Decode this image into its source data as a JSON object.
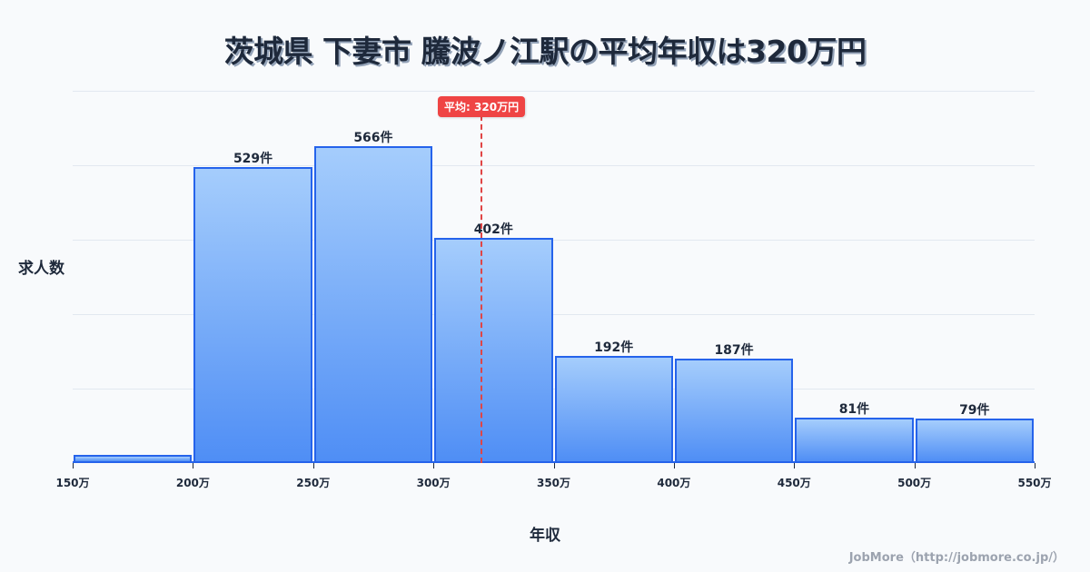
{
  "title": "茨城県 下妻市 騰波ノ江駅の平均年収は320万円",
  "axis": {
    "ylabel": "求人数",
    "xlabel": "年収"
  },
  "mean": {
    "label": "平均: 320万円",
    "value": 320,
    "color": "#ef4444"
  },
  "credit": "JobMore（http://jobmore.co.jp/）",
  "ticks": [
    "150万",
    "200万",
    "250万",
    "300万",
    "350万",
    "400万",
    "450万",
    "500万",
    "550万"
  ],
  "bars": [
    {
      "range": "150-200万",
      "value": 15,
      "label": ""
    },
    {
      "range": "200-250万",
      "value": 529,
      "label": "529件"
    },
    {
      "range": "250-300万",
      "value": 566,
      "label": "566件"
    },
    {
      "range": "300-350万",
      "value": 402,
      "label": "402件"
    },
    {
      "range": "350-400万",
      "value": 192,
      "label": "192件"
    },
    {
      "range": "400-450万",
      "value": 187,
      "label": "187件"
    },
    {
      "range": "450-500万",
      "value": 81,
      "label": "81件"
    },
    {
      "range": "500-550万",
      "value": 79,
      "label": "79件"
    }
  ],
  "colors": {
    "bar_border": "#2563eb",
    "bar_top": "#a5cdfc",
    "bar_bottom": "#4f8ef5",
    "mean_line": "#e04545",
    "text": "#1e293b"
  },
  "chart_data": {
    "type": "bar",
    "title": "茨城県 下妻市 騰波ノ江駅の平均年収は320万円",
    "xlabel": "年収",
    "ylabel": "求人数",
    "categories": [
      "150-200万",
      "200-250万",
      "250-300万",
      "300-350万",
      "350-400万",
      "400-450万",
      "450-500万",
      "500-550万"
    ],
    "values": [
      15,
      529,
      566,
      402,
      192,
      187,
      81,
      79
    ],
    "x_ticks": [
      "150万",
      "200万",
      "250万",
      "300万",
      "350万",
      "400万",
      "450万",
      "500万",
      "550万"
    ],
    "xlim": [
      150,
      550
    ],
    "ylim": [
      0,
      665
    ],
    "grid": true,
    "annotations": [
      {
        "type": "vline",
        "x": 320,
        "label": "平均: 320万円"
      }
    ],
    "legend": null
  }
}
